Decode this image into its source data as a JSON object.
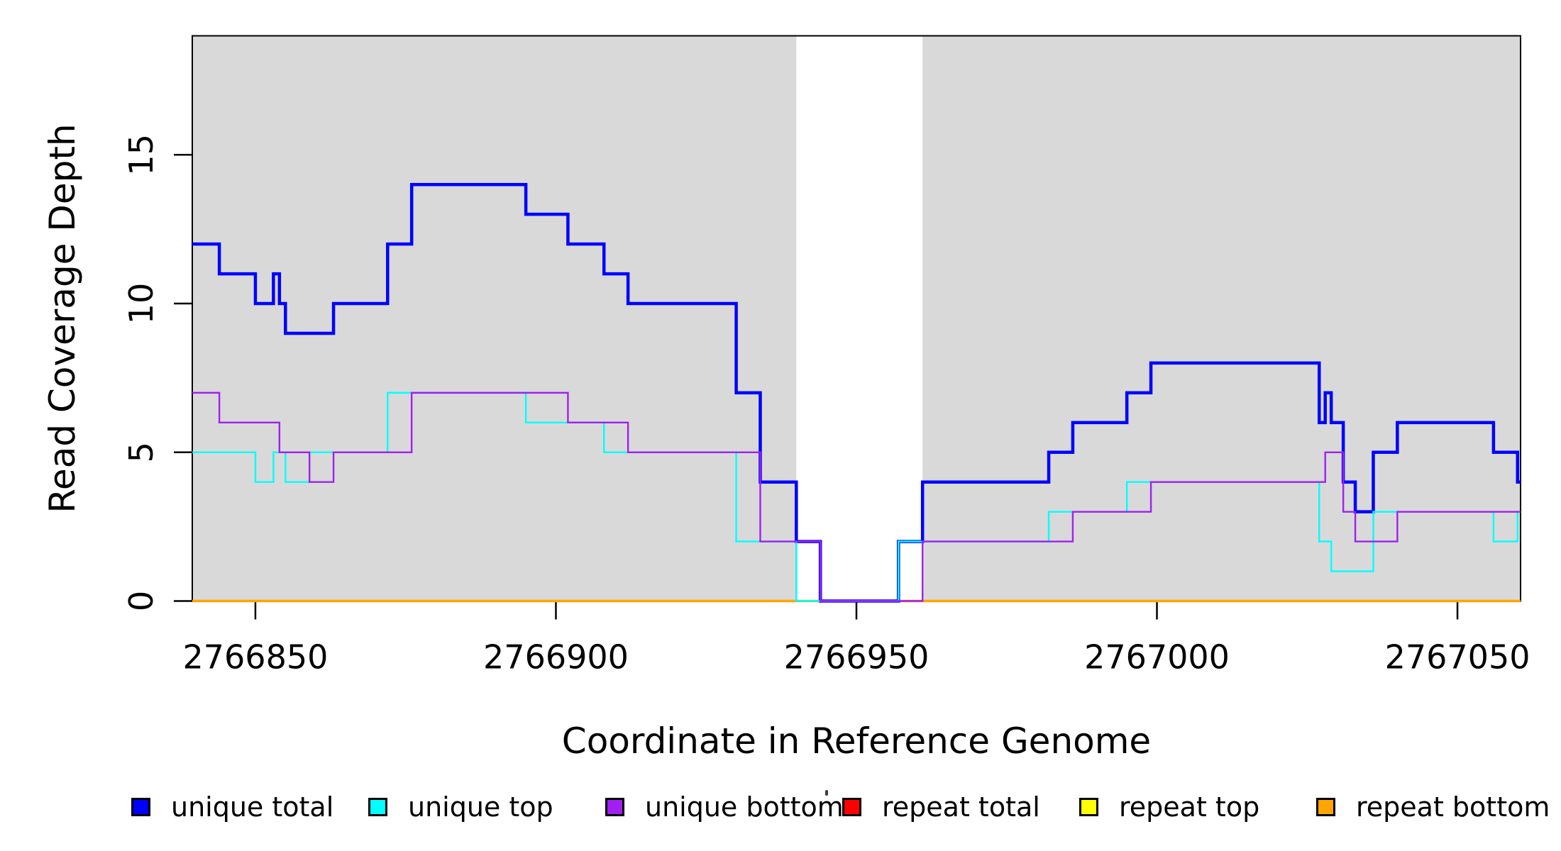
{
  "chart_data": {
    "type": "line",
    "subtype": "step",
    "title": "",
    "xlabel": "Coordinate in Reference Genome",
    "ylabel": "Read Coverage Depth",
    "xlim": [
      2766839.5,
      2767060.5
    ],
    "ylim": [
      0,
      19
    ],
    "x_ticks": [
      2766850,
      2766900,
      2766950,
      2767000,
      2767050
    ],
    "y_ticks": [
      0,
      5,
      10,
      15
    ],
    "grid": "off",
    "legend_position": "bottom",
    "background_shading": {
      "color": "#d9d9d9",
      "regions": [
        [
          2766839.5,
          2766940
        ],
        [
          2766961,
          2767060.5
        ]
      ],
      "white_gap": [
        2766940,
        2766961
      ]
    },
    "draw_order": [
      3,
      4,
      5,
      0,
      1,
      2
    ],
    "series": [
      {
        "name": "unique total",
        "color": "#0000ff",
        "line_width": 4.5,
        "steps": [
          [
            2766839.5,
            12
          ],
          [
            2766844,
            11
          ],
          [
            2766850,
            10
          ],
          [
            2766853,
            11
          ],
          [
            2766854,
            10
          ],
          [
            2766855,
            9
          ],
          [
            2766863,
            10
          ],
          [
            2766872,
            12
          ],
          [
            2766876,
            14
          ],
          [
            2766895,
            13
          ],
          [
            2766902,
            12
          ],
          [
            2766908,
            11
          ],
          [
            2766912,
            10
          ],
          [
            2766930,
            7
          ],
          [
            2766934,
            4
          ],
          [
            2766940,
            2
          ],
          [
            2766944,
            0
          ],
          [
            2766957,
            2
          ],
          [
            2766961,
            4
          ],
          [
            2766982,
            5
          ],
          [
            2766986,
            6
          ],
          [
            2766995,
            7
          ],
          [
            2766999,
            8
          ],
          [
            2767027,
            6
          ],
          [
            2767028,
            7
          ],
          [
            2767029,
            6
          ],
          [
            2767031,
            4
          ],
          [
            2767033,
            3
          ],
          [
            2767036,
            5
          ],
          [
            2767040,
            6
          ],
          [
            2767056,
            5
          ],
          [
            2767060,
            4
          ]
        ]
      },
      {
        "name": "unique top",
        "color": "#00ffff",
        "line_width": 2.4,
        "steps": [
          [
            2766839.5,
            5
          ],
          [
            2766850,
            4
          ],
          [
            2766853,
            5
          ],
          [
            2766855,
            4
          ],
          [
            2766859,
            5
          ],
          [
            2766872,
            7
          ],
          [
            2766895,
            6
          ],
          [
            2766908,
            5
          ],
          [
            2766930,
            2
          ],
          [
            2766940,
            0
          ],
          [
            2766957,
            2
          ],
          [
            2766982,
            3
          ],
          [
            2766995,
            4
          ],
          [
            2767027,
            2
          ],
          [
            2767029,
            1
          ],
          [
            2767036,
            3
          ],
          [
            2767056,
            2
          ],
          [
            2767060,
            3
          ]
        ]
      },
      {
        "name": "unique bottom",
        "color": "#a020f0",
        "line_width": 2.4,
        "steps": [
          [
            2766839.5,
            7
          ],
          [
            2766844,
            6
          ],
          [
            2766854,
            5
          ],
          [
            2766859,
            4
          ],
          [
            2766863,
            5
          ],
          [
            2766876,
            7
          ],
          [
            2766902,
            6
          ],
          [
            2766912,
            5
          ],
          [
            2766934,
            2
          ],
          [
            2766944,
            0
          ],
          [
            2766961,
            2
          ],
          [
            2766986,
            3
          ],
          [
            2766999,
            4
          ],
          [
            2767028,
            5
          ],
          [
            2767031,
            3
          ],
          [
            2767033,
            2
          ],
          [
            2767040,
            3
          ]
        ]
      },
      {
        "name": "repeat total",
        "color": "#ff0000",
        "line_width": 2.4,
        "steps": [
          [
            2766839.5,
            0
          ]
        ]
      },
      {
        "name": "repeat top",
        "color": "#ffff00",
        "line_width": 2.4,
        "steps": [
          [
            2766839.5,
            0
          ]
        ]
      },
      {
        "name": "repeat bottom",
        "color": "#ffa500",
        "line_width": 3.5,
        "steps": [
          [
            2766839.5,
            0
          ]
        ]
      }
    ]
  }
}
